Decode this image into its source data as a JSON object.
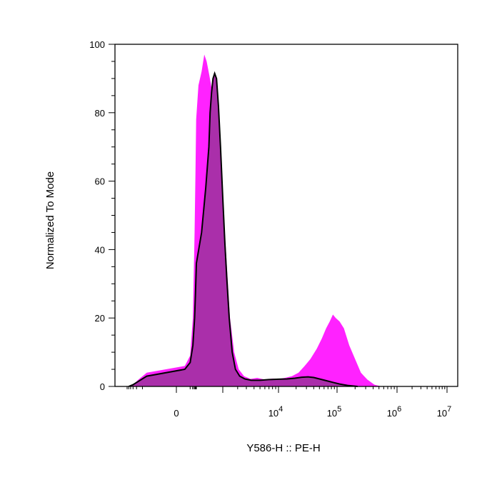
{
  "chart_data": {
    "type": "area",
    "xlabel": "Y586-H :: PE-H",
    "ylabel": "Normalized To Mode",
    "x_scale": "biexponential",
    "xlim": [
      -300,
      10000000
    ],
    "ylim": [
      0,
      100
    ],
    "y_ticks": [
      0,
      20,
      40,
      60,
      80,
      100
    ],
    "x_ticks": [
      {
        "value": 0,
        "base": "0",
        "exp": ""
      },
      {
        "value": 10000,
        "base": "10",
        "exp": "4"
      },
      {
        "value": 100000,
        "base": "10",
        "exp": "5"
      },
      {
        "value": 1000000,
        "base": "10",
        "exp": "6"
      },
      {
        "value": 10000000,
        "base": "10",
        "exp": "7"
      }
    ],
    "grid": false,
    "legend": "none",
    "colors": {
      "stained": "#ff22ff",
      "control_fill": "#aa2faa",
      "control_line": "#000000"
    },
    "series": [
      {
        "style": "filled",
        "values": [
          [
            -250,
            0
          ],
          [
            -150,
            0.5
          ],
          [
            -80,
            2
          ],
          [
            -30,
            4
          ],
          [
            10,
            6
          ],
          [
            50,
            9
          ],
          [
            110,
            20
          ],
          [
            180,
            45
          ],
          [
            230,
            62
          ],
          [
            280,
            78
          ],
          [
            330,
            88
          ],
          [
            380,
            92
          ],
          [
            430,
            97
          ],
          [
            480,
            95
          ],
          [
            540,
            91
          ],
          [
            620,
            86
          ],
          [
            720,
            80
          ],
          [
            850,
            70
          ],
          [
            1000,
            55
          ],
          [
            1200,
            36
          ],
          [
            1400,
            20
          ],
          [
            1700,
            10
          ],
          [
            2100,
            5
          ],
          [
            2700,
            3
          ],
          [
            3500,
            2.2
          ],
          [
            4500,
            2.5
          ],
          [
            6000,
            2
          ],
          [
            8000,
            2.3
          ],
          [
            10000,
            2.2
          ],
          [
            13000,
            2.5
          ],
          [
            17000,
            3
          ],
          [
            22000,
            4
          ],
          [
            28000,
            6
          ],
          [
            35000,
            8
          ],
          [
            45000,
            11
          ],
          [
            55000,
            14
          ],
          [
            65000,
            17
          ],
          [
            75000,
            19
          ],
          [
            85000,
            21
          ],
          [
            95000,
            20
          ],
          [
            110000,
            19
          ],
          [
            130000,
            17
          ],
          [
            160000,
            12
          ],
          [
            200000,
            8
          ],
          [
            250000,
            4
          ],
          [
            320000,
            2
          ],
          [
            420000,
            0.5
          ],
          [
            550000,
            0
          ]
        ]
      },
      {
        "style": "filled-outline",
        "values": [
          [
            -250,
            0
          ],
          [
            -150,
            0.5
          ],
          [
            -80,
            1.5
          ],
          [
            -30,
            3
          ],
          [
            10,
            5
          ],
          [
            50,
            7
          ],
          [
            110,
            12
          ],
          [
            180,
            20
          ],
          [
            230,
            27
          ],
          [
            300,
            36
          ],
          [
            380,
            45
          ],
          [
            460,
            58
          ],
          [
            530,
            70
          ],
          [
            560,
            80
          ],
          [
            600,
            86
          ],
          [
            640,
            90
          ],
          [
            690,
            91.5
          ],
          [
            750,
            90
          ],
          [
            820,
            82
          ],
          [
            900,
            70
          ],
          [
            1000,
            55
          ],
          [
            1100,
            42
          ],
          [
            1200,
            32
          ],
          [
            1350,
            20
          ],
          [
            1550,
            10
          ],
          [
            1800,
            5
          ],
          [
            2200,
            3
          ],
          [
            2800,
            2.2
          ],
          [
            3600,
            1.8
          ],
          [
            5000,
            1.8
          ],
          [
            7000,
            2
          ],
          [
            10000,
            2.1
          ],
          [
            14000,
            2.2
          ],
          [
            19000,
            2.4
          ],
          [
            25000,
            2.7
          ],
          [
            32000,
            2.8
          ],
          [
            40000,
            2.6
          ],
          [
            50000,
            2.2
          ],
          [
            65000,
            1.7
          ],
          [
            85000,
            1.2
          ],
          [
            110000,
            0.7
          ],
          [
            150000,
            0.3
          ],
          [
            220000,
            0
          ]
        ]
      }
    ]
  }
}
